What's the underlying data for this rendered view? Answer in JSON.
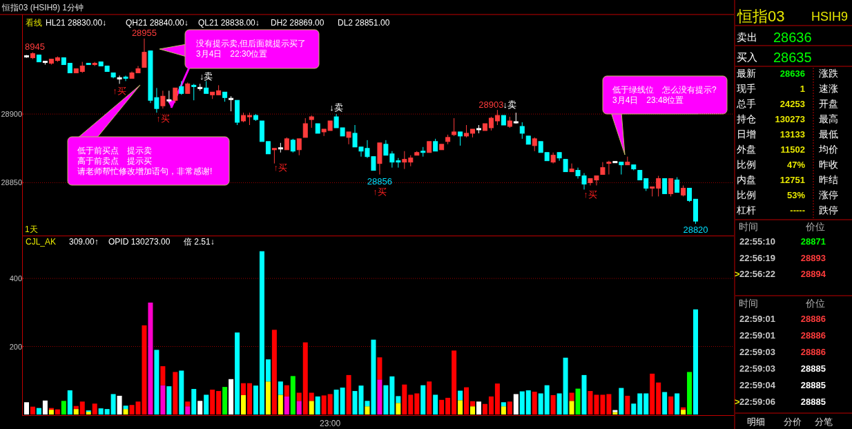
{
  "chart_data": [
    {
      "type": "candlestick",
      "title": "恒指03 (HSIH9) 1分钟",
      "categories": [
        null,
        null,
        null,
        null,
        null,
        null,
        null,
        null,
        null,
        null,
        null,
        null,
        null,
        null,
        null,
        null,
        null,
        null,
        null,
        null,
        null,
        null,
        null,
        null,
        null,
        null,
        null,
        null,
        null,
        null,
        null,
        null,
        null,
        null,
        null,
        null,
        null,
        null,
        null,
        null,
        null,
        null,
        null,
        null,
        null,
        null,
        null,
        null,
        null,
        null,
        null,
        null,
        null,
        null,
        null,
        null,
        null,
        null,
        null,
        null,
        null,
        null,
        null,
        null,
        null,
        null,
        null,
        null,
        null,
        null,
        null,
        null,
        null,
        null,
        null,
        null,
        null,
        null,
        null,
        null,
        null,
        null,
        null,
        null,
        null,
        null,
        null,
        null,
        null,
        null,
        null,
        null,
        null,
        null,
        null,
        null,
        null,
        null,
        null,
        null,
        null,
        null,
        null,
        null,
        null,
        null,
        null,
        null,
        null
      ],
      "ohlc": [
        [
          28942,
          28943,
          28941,
          28942
        ],
        [
          28941,
          28945,
          28940,
          28944
        ],
        [
          28943,
          28943,
          28938,
          28938
        ],
        [
          28938,
          28938,
          28936,
          28938
        ],
        [
          28937,
          28940,
          28936,
          28940
        ],
        [
          28939,
          28942,
          28938,
          28941
        ],
        [
          28941,
          28941,
          28936,
          28936
        ],
        [
          28937,
          28937,
          28930,
          28930
        ],
        [
          28930,
          28933,
          28930,
          28933
        ],
        [
          28931,
          28938,
          28930,
          28935
        ],
        [
          28937,
          28937,
          28936,
          28936
        ],
        [
          28936,
          28938,
          28935,
          28937
        ],
        [
          28938,
          28938,
          28935,
          28935
        ],
        [
          28935,
          28935,
          28931,
          28931
        ],
        [
          28930,
          28930,
          28926,
          28927
        ],
        [
          28926,
          28928,
          28922,
          28926
        ],
        [
          28927,
          28928,
          28924,
          28926
        ],
        [
          28926,
          28931,
          28926,
          28930
        ],
        [
          28930,
          28935,
          28930,
          28933
        ],
        [
          28934,
          28955,
          28934,
          28945
        ],
        [
          28946,
          28946,
          28908,
          28910
        ],
        [
          28912,
          28919,
          28901,
          28904
        ],
        [
          28906,
          28917,
          28904,
          28913
        ],
        [
          28910,
          28917,
          28908,
          28910
        ],
        [
          28910,
          28919,
          28908,
          28919
        ],
        [
          28920,
          28924,
          28914,
          28915
        ],
        [
          28915,
          28923,
          28915,
          28922
        ],
        [
          28921,
          28922,
          28910,
          28920
        ],
        [
          28919,
          28922,
          28917,
          28919
        ],
        [
          28919,
          28924,
          28915,
          28915
        ],
        [
          28914,
          28916,
          28911,
          28916
        ],
        [
          28914,
          28921,
          28914,
          28917
        ],
        [
          28916,
          28916,
          28909,
          28912
        ],
        [
          28911,
          28913,
          28902,
          28911
        ],
        [
          28910,
          28910,
          28892,
          28894
        ],
        [
          28895,
          28901,
          28894,
          28899
        ],
        [
          28898,
          28901,
          28892,
          28899
        ],
        [
          28899,
          28900,
          28895,
          28896
        ],
        [
          28895,
          28895,
          28880,
          28880
        ],
        [
          28880,
          28880,
          28871,
          28871
        ],
        [
          28874,
          28875,
          28864,
          28875
        ],
        [
          28875,
          28879,
          28872,
          28875
        ],
        [
          28874,
          28883,
          28874,
          28882
        ],
        [
          28881,
          28882,
          28872,
          28873
        ],
        [
          28874,
          28882,
          28870,
          28882
        ],
        [
          28883,
          28897,
          28883,
          28893
        ],
        [
          28896,
          28899,
          28890,
          28898
        ],
        [
          28893,
          28893,
          28886,
          28886
        ],
        [
          28887,
          28889,
          28884,
          28889
        ],
        [
          28888,
          28895,
          28888,
          28895
        ],
        [
          28898,
          28900,
          28890,
          28890
        ],
        [
          28890,
          28890,
          28884,
          28884
        ],
        [
          28883,
          28887,
          28878,
          28887
        ],
        [
          28886,
          28892,
          28876,
          28876
        ],
        [
          28876,
          28876,
          28869,
          28873
        ],
        [
          28875,
          28881,
          28868,
          28869
        ],
        [
          28869,
          28869,
          28859,
          28859
        ],
        [
          28864,
          28879,
          28856,
          28879
        ],
        [
          28878,
          28881,
          28870,
          28870
        ],
        [
          28871,
          28873,
          28861,
          28865
        ],
        [
          28866,
          28868,
          28861,
          28865
        ],
        [
          28865,
          28873,
          28860,
          28867
        ],
        [
          28865,
          28870,
          28862,
          28868
        ],
        [
          28870,
          28873,
          28870,
          28872
        ],
        [
          28873,
          28876,
          28869,
          28872
        ],
        [
          28872,
          28880,
          28872,
          28880
        ],
        [
          28880,
          28882,
          28873,
          28873
        ],
        [
          28874,
          28878,
          28874,
          28878
        ],
        [
          28880,
          28885,
          28878,
          28883
        ],
        [
          28885,
          28897,
          28884,
          28887
        ],
        [
          28887,
          28887,
          28877,
          28884
        ],
        [
          28884,
          28892,
          28883,
          28886
        ],
        [
          28886,
          28889,
          28883,
          28889
        ],
        [
          28889,
          28892,
          28886,
          28889
        ],
        [
          28888,
          28893,
          28888,
          28893
        ],
        [
          28890,
          28898,
          28888,
          28897
        ],
        [
          28895,
          28903,
          28892,
          28899
        ],
        [
          28899,
          28899,
          28892,
          28892
        ],
        [
          28891,
          28898,
          28890,
          28895
        ],
        [
          28894,
          28901,
          28893,
          28894
        ],
        [
          28891,
          28894,
          28882,
          28886
        ],
        [
          28884,
          28884,
          28878,
          28878
        ],
        [
          28877,
          28883,
          28873,
          28882
        ],
        [
          28880,
          28880,
          28872,
          28872
        ],
        [
          28872,
          28872,
          28866,
          28866
        ],
        [
          28865,
          28872,
          28864,
          28870
        ],
        [
          28872,
          28872,
          28866,
          28868
        ],
        [
          28867,
          28867,
          28858,
          28858
        ],
        [
          28858,
          28864,
          28858,
          28860
        ],
        [
          28859,
          28861,
          28853,
          28855
        ],
        [
          28855,
          28857,
          28845,
          28849
        ],
        [
          28850,
          28853,
          28848,
          28853
        ],
        [
          28852,
          28855,
          28848,
          28855
        ],
        [
          28856,
          28865,
          28856,
          28861
        ],
        [
          28864,
          28866,
          28856,
          28865
        ],
        [
          28865,
          28865,
          28865,
          28865
        ],
        [
          28865,
          28865,
          28856,
          28863
        ],
        [
          28863,
          28869,
          28863,
          28865
        ],
        [
          28863,
          28863,
          28859,
          28860
        ],
        [
          28859,
          28859,
          28852,
          28852
        ],
        [
          28853,
          28853,
          28844,
          28846
        ],
        [
          28846,
          28847,
          28840,
          28847
        ],
        [
          28846,
          28855,
          28840,
          28853
        ],
        [
          28853,
          28853,
          28842,
          28842
        ],
        [
          28842,
          28853,
          28840,
          28853
        ],
        [
          28852,
          28854,
          28843,
          28843
        ],
        [
          28841,
          28848,
          28840,
          28846
        ],
        [
          28846,
          28846,
          28836,
          28837
        ],
        [
          28838,
          28838,
          28820,
          28822
        ]
      ],
      "ylim": [
        28812,
        28972
      ],
      "yticks": [
        28850,
        28900
      ],
      "tick_labels": "y",
      "grid": "y",
      "annotations": [
        "看线",
        "HL21 28830.00↓",
        "QH21 28840.00↓",
        "QL21 28838.00↓",
        "DH2 28869.00",
        "DL2 28851.00",
        "1天",
        "没有提示卖,但后面就提示买了",
        "3月4日　22:30位置",
        "低于前买点　提示卖",
        "高于前卖点　提示买",
        "请老师帮忙修改增加语句，非常感谢!",
        "低于绿线位　怎么没有提示?",
        "3月4日　23:48位置",
        "8945",
        "28955",
        "↑买",
        "↑买",
        "↓卖",
        "↑买",
        "↓卖",
        "28856",
        "↑买",
        "28903",
        "↓卖",
        "↑买",
        "28820"
      ]
    },
    {
      "type": "bar",
      "stacked": true,
      "categories": [
        null,
        null,
        null,
        null,
        null,
        null,
        null,
        null,
        null,
        null,
        null,
        null,
        null,
        null,
        null,
        null,
        null,
        null,
        null,
        null,
        null,
        null,
        null,
        null,
        null,
        null,
        null,
        null,
        null,
        null,
        null,
        null,
        null,
        null,
        null,
        null,
        null,
        null,
        null,
        null,
        null,
        null,
        null,
        null,
        null,
        null,
        null,
        null,
        null,
        "23:00",
        null,
        null,
        null,
        null,
        null,
        null,
        null,
        null,
        null,
        null,
        null,
        null,
        null,
        null,
        null,
        null,
        null,
        null,
        null,
        null,
        null,
        null,
        null,
        null,
        null,
        null,
        null,
        null,
        null,
        null,
        null,
        null,
        null,
        null,
        null,
        null,
        null,
        null,
        null,
        null,
        null,
        null,
        null,
        null,
        null,
        null,
        null,
        null,
        null,
        null,
        null,
        null,
        null,
        null,
        null,
        null,
        null,
        null,
        null
      ],
      "series": [
        {
          "values": [
            null,
            null,
            null,
            null,
            14,
            null,
            null,
            null,
            16,
            null,
            8,
            null,
            null,
            null,
            null,
            null,
            16,
            null,
            null,
            null,
            null,
            null,
            86,
            null,
            null,
            null,
            24,
            null,
            null,
            null,
            null,
            null,
            null,
            null,
            null,
            57,
            null,
            null,
            null,
            97,
            null,
            58,
            53,
            null,
            40,
            null,
            40,
            null,
            null,
            null,
            null,
            null,
            null,
            null,
            null,
            24,
            null,
            103,
            null,
            null,
            34,
            null,
            null,
            null,
            null,
            null,
            null,
            null,
            null,
            null,
            42,
            null,
            24,
            null,
            null,
            null,
            null,
            24,
            null,
            null,
            null,
            null,
            null,
            null,
            null,
            null,
            null,
            null,
            40,
            null,
            null,
            null,
            null,
            null,
            null,
            7,
            null,
            null,
            null,
            null,
            null,
            null,
            null,
            null,
            null,
            null,
            14,
            null,
            null
          ],
          "colors": [
            null,
            null,
            null,
            null,
            "#ffff00",
            null,
            null,
            null,
            "#ffff00",
            null,
            "#ffff00",
            null,
            null,
            null,
            null,
            null,
            "#ffff00",
            null,
            null,
            null,
            null,
            null,
            "#ff00cc",
            null,
            null,
            null,
            "#ff00cc",
            null,
            null,
            null,
            null,
            null,
            null,
            null,
            null,
            "#ffff00",
            null,
            null,
            null,
            "#ffff00",
            null,
            "#ffff00",
            "#ff00cc",
            null,
            "#ff00cc",
            null,
            "#ffff00",
            null,
            null,
            null,
            null,
            null,
            null,
            null,
            null,
            "#ffff00",
            null,
            "#ff00cc",
            null,
            null,
            "#ffff00",
            null,
            null,
            null,
            null,
            null,
            null,
            null,
            null,
            null,
            "#ffff00",
            null,
            "#ffff00",
            null,
            null,
            null,
            null,
            "#ffff00",
            null,
            null,
            null,
            null,
            null,
            null,
            null,
            null,
            null,
            null,
            "#ffff00",
            null,
            null,
            null,
            null,
            null,
            null,
            "#ffff00",
            null,
            null,
            null,
            null,
            null,
            null,
            null,
            null,
            null,
            null,
            "#ffff00",
            null,
            null
          ]
        },
        {
          "values": [
            36,
            23,
            19,
            41,
            5,
            15,
            40,
            71,
            9,
            38,
            4,
            32,
            18,
            16,
            60,
            55,
            10,
            28,
            38,
            262,
            329,
            190,
            56,
            83,
            125,
            129,
            14,
            75,
            40,
            58,
            73,
            69,
            81,
            104,
            241,
            35,
            92,
            85,
            480,
            65,
            249,
            39,
            33,
            113,
            24,
            212,
            24,
            53,
            56,
            60,
            73,
            79,
            116,
            69,
            85,
            16,
            220,
            65,
            86,
            112,
            20,
            88,
            58,
            62,
            86,
            97,
            58,
            43,
            49,
            188,
            28,
            80,
            15,
            38,
            31,
            53,
            91,
            12,
            38,
            60,
            68,
            71,
            67,
            62,
            86,
            57,
            62,
            167,
            24,
            76,
            116,
            69,
            58,
            58,
            60,
            6,
            78,
            55,
            32,
            62,
            62,
            120,
            94,
            66,
            53,
            62,
            7,
            125,
            309
          ],
          "colors": [
            "#ffffff",
            "#ff0000",
            "#00ffff",
            "#ffffff",
            "#ff0000",
            "#ff0000",
            "#00ff00",
            "#00ffff",
            "#ff0000",
            "#ff0000",
            "#00ffff",
            "#ff0000",
            "#00ffff",
            "#00ffff",
            "#00ffff",
            "#ffffff",
            "#00ffff",
            "#ff0000",
            "#ff0000",
            "#ff0000",
            "#ff00cc",
            "#00ffff",
            "#ff0000",
            "#00ffff",
            "#ff0000",
            "#00ffff",
            "#ff0000",
            "#00ffff",
            "#ffffff",
            "#00ffff",
            "#ff0000",
            "#ff0000",
            "#00ff00",
            "#ffffff",
            "#00ffff",
            "#ff0000",
            "#ff0000",
            "#00ffff",
            "#00ffff",
            "#00ffff",
            "#ff0000",
            "#00ffff",
            "#ff0000",
            "#00ff00",
            "#ff0000",
            "#ff0000",
            "#ff0000",
            "#00ffff",
            "#ff0000",
            "#ff0000",
            "#00ffff",
            "#00ffff",
            "#ff0000",
            "#00ffff",
            "#00ffff",
            "#00ffff",
            "#00ffff",
            "#ff0000",
            "#00ffff",
            "#00ffff",
            "#00ffff",
            "#ff0000",
            "#ff0000",
            "#ff0000",
            "#00ffff",
            "#ff0000",
            "#00ffff",
            "#ff0000",
            "#ff0000",
            "#ff0000",
            "#00ffff",
            "#ff0000",
            "#ff0000",
            "#ffffff",
            "#ff0000",
            "#ff0000",
            "#ff0000",
            "#00ffff",
            "#ff0000",
            "#ffffff",
            "#00ffff",
            "#00ffff",
            "#ff0000",
            "#00ffff",
            "#00ffff",
            "#ff0000",
            "#00ffff",
            "#00ffff",
            "#ff0000",
            "#00ff00",
            "#00ffff",
            "#ff0000",
            "#ff0000",
            "#ff0000",
            "#ff0000",
            "#ffffff",
            "#00ffff",
            "#ff0000",
            "#00ffff",
            "#00ffff",
            "#00ffff",
            "#ff0000",
            "#ff0000",
            "#00ffff",
            "#ff0000",
            "#00ffff",
            "#ff0000",
            "#00ff00",
            "#00ffff"
          ]
        }
      ],
      "ylim": [
        0,
        524
      ],
      "yticks": [
        200,
        400
      ],
      "grid": "y",
      "annotations": [
        "CJL_AK",
        "309.00↑",
        "OPID 130273.00",
        "倍 2.51↓"
      ]
    },
    {
      "type": "other",
      "annotations": [
        "恒指03",
        "HSIH9",
        "卖出",
        "28636",
        "买入",
        "28635",
        "最新",
        "28636",
        "现手",
        "1",
        "总手",
        "24253",
        "持仓",
        "130273",
        "日增",
        "13133",
        "外盘",
        "11502",
        "比例",
        "47%",
        "内盘",
        "12751",
        "比例",
        "53%",
        "杠杆",
        "-----",
        "涨跌",
        "速涨",
        "开盘",
        "最高",
        "最低",
        "均价",
        "昨收",
        "昨结",
        "涨停",
        "跌停",
        "时间",
        "价位",
        "22:55:10",
        "28871",
        "22:56:19",
        "28893",
        ">",
        "22:56:22",
        "28894",
        "时间",
        "价位",
        "22:59:01",
        "28886",
        "22:59:01",
        "28886",
        "22:59:03",
        "28886",
        "22:59:03",
        "28885",
        "22:59:04",
        "28885",
        ">",
        "22:59:06",
        "28885",
        "明细",
        "分价",
        "分笔"
      ]
    }
  ]
}
